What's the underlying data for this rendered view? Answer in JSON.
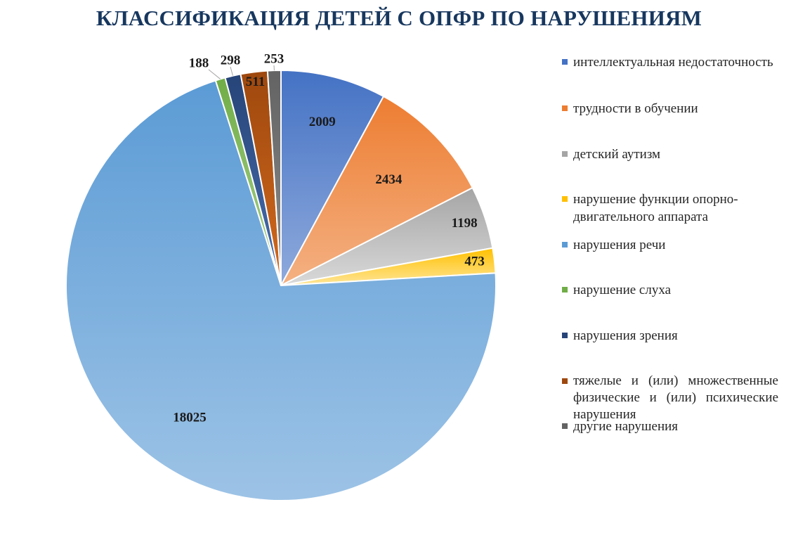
{
  "chart_data": {
    "type": "pie",
    "title": "КЛАССИФИКАЦИЯ ДЕТЕЙ С ОПФР ПО НАРУШЕНИЯМ",
    "legend_position": "right",
    "categories": [
      "интеллектуальная недостаточность",
      "трудности в обучении",
      "детский аутизм",
      "нарушение функции опорно-двигательного аппарата",
      "нарушения речи",
      "нарушение слуха",
      "нарушения зрения",
      "тяжелые  и (или) множественные физические  и (или) психические нарушения",
      "другие нарушения"
    ],
    "values": [
      2009,
      2434,
      1198,
      473,
      18025,
      188,
      298,
      511,
      253
    ],
    "data_labels": [
      "2009",
      "2434",
      "1198",
      "473",
      "18025",
      "188",
      "298",
      "511",
      "253"
    ],
    "colors": [
      [
        "#4472c4",
        "#8faadc"
      ],
      [
        "#ed7d31",
        "#f4b183"
      ],
      [
        "#a5a5a5",
        "#d9d9d9"
      ],
      [
        "#ffc000",
        "#ffe699"
      ],
      [
        "#5b9bd5",
        "#9dc3e6"
      ],
      [
        "#70ad47",
        "#a9d18e"
      ],
      [
        "#264478",
        "#4a6fb0"
      ],
      [
        "#9e480e",
        "#d2691e"
      ],
      [
        "#636363",
        "#8c8c8c"
      ]
    ]
  }
}
